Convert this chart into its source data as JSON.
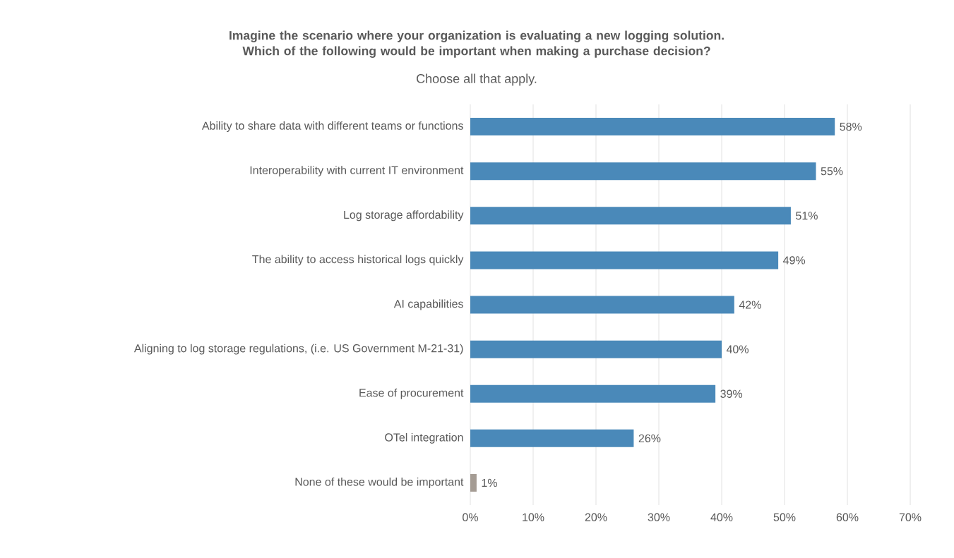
{
  "chart_data": {
    "type": "bar",
    "orientation": "horizontal",
    "title": "Imagine the scenario where your organization is evaluating a new logging solution. Which of the following would be important when making a purchase decision?",
    "subtitle": "Choose all that apply.",
    "categories": [
      "Ability to share data with different teams or functions",
      "Interoperability with current IT environment",
      "Log storage affordability",
      "The ability to access historical logs quickly",
      "AI capabilities",
      "Aligning to log storage regulations, (i.e.  US Government M-21-31)",
      "Ease of procurement",
      "OTel integration",
      "None of these would be important"
    ],
    "values": [
      58,
      55,
      51,
      49,
      42,
      40,
      39,
      26,
      1
    ],
    "value_labels": [
      "58%",
      "55%",
      "51%",
      "49%",
      "42%",
      "40%",
      "39%",
      "26%",
      "1%"
    ],
    "colors": [
      "#4a89b9",
      "#4a89b9",
      "#4a89b9",
      "#4a89b9",
      "#4a89b9",
      "#4a89b9",
      "#4a89b9",
      "#4a89b9",
      "#a59c94"
    ],
    "xlim": [
      0,
      70
    ],
    "xticks": [
      {
        "value": 0,
        "label": "0%"
      },
      {
        "value": 10,
        "label": "10%"
      },
      {
        "value": 20,
        "label": "20%"
      },
      {
        "value": 30,
        "label": "30%"
      },
      {
        "value": 40,
        "label": "40%"
      },
      {
        "value": 50,
        "label": "50%"
      },
      {
        "value": 60,
        "label": "60%"
      },
      {
        "value": 70,
        "label": "70%"
      }
    ],
    "grid": "x"
  }
}
